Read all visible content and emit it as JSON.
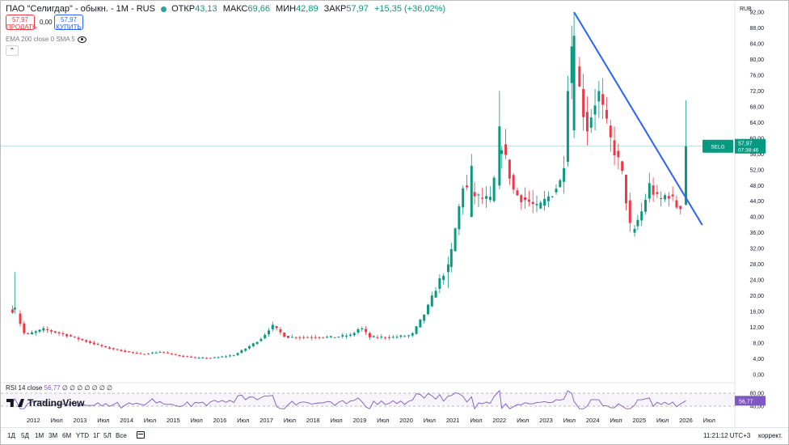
{
  "header": {
    "instrument": "ПАО \"Селигдар\" - обыкн. - 1М - RUS",
    "ohlc": [
      {
        "label": "ОТКР",
        "value": "43,13"
      },
      {
        "label": "МАКС",
        "value": "69,66"
      },
      {
        "label": "МИН",
        "value": "42,89"
      },
      {
        "label": "ЗАКР",
        "value": "57,97"
      }
    ],
    "change": "+15,35 (+36,02%)"
  },
  "trade": {
    "sell_price": "57,97",
    "sell_label": "ПРОДАТЬ",
    "spread": "0,00",
    "buy_price": "57,97",
    "buy_label": "КУПИТЬ"
  },
  "indicator_legend": "EMA 200 close 0 SMA 5",
  "collapse_icon": "chevron-up-icon",
  "currency": "RUB",
  "price_tag": {
    "symbol": "SELG",
    "price": "57,97",
    "countdown": "07:38:46"
  },
  "rsi": {
    "label": "RSI 14 close",
    "value": "56,77",
    "empty_values": "∅ ∅ ∅ ∅ ∅ ∅ ∅"
  },
  "logo": "TradingView",
  "timeframes": [
    "1Д",
    "5Д",
    "1М",
    "3М",
    "6М",
    "YTD",
    "1Г",
    "5Л",
    "Все"
  ],
  "clock": "11:21:12 UTC+3",
  "adjust_label": "коррект.",
  "colors": {
    "up": "#089981",
    "down": "#f23645",
    "trendline": "#2962ff",
    "rsi": "#7e57c2"
  },
  "chart_data": {
    "type": "candlestick",
    "interval": "1M",
    "ylim": [
      0,
      92
    ],
    "y_ticks": [
      "0,00",
      "4,00",
      "8,00",
      "12,00",
      "16,00",
      "20,00",
      "24,00",
      "28,00",
      "32,00",
      "36,00",
      "40,00",
      "44,00",
      "48,00",
      "52,00",
      "56,00",
      "60,00",
      "64,00",
      "68,00",
      "72,00",
      "76,00",
      "80,00",
      "84,00",
      "88,00",
      "92,00"
    ],
    "x_labels": [
      {
        "t": 2012.0,
        "label": "2012"
      },
      {
        "t": 2012.5,
        "label": "Июл"
      },
      {
        "t": 2013.0,
        "label": "2013"
      },
      {
        "t": 2013.5,
        "label": "Июл"
      },
      {
        "t": 2014.0,
        "label": "2014"
      },
      {
        "t": 2014.5,
        "label": "Июл"
      },
      {
        "t": 2015.0,
        "label": "2015"
      },
      {
        "t": 2015.5,
        "label": "Июл"
      },
      {
        "t": 2016.0,
        "label": "2016"
      },
      {
        "t": 2016.5,
        "label": "Июл"
      },
      {
        "t": 2017.0,
        "label": "2017"
      },
      {
        "t": 2017.5,
        "label": "Июл"
      },
      {
        "t": 2018.0,
        "label": "2018"
      },
      {
        "t": 2018.5,
        "label": "Июл"
      },
      {
        "t": 2019.0,
        "label": "2019"
      },
      {
        "t": 2019.5,
        "label": "Июл"
      },
      {
        "t": 2020.0,
        "label": "2020"
      },
      {
        "t": 2020.5,
        "label": "Июл"
      },
      {
        "t": 2021.0,
        "label": "2021"
      },
      {
        "t": 2021.5,
        "label": "Июл"
      },
      {
        "t": 2022.0,
        "label": "2022"
      },
      {
        "t": 2022.5,
        "label": "Июл"
      },
      {
        "t": 2023.0,
        "label": "2023"
      },
      {
        "t": 2023.5,
        "label": "Июл"
      },
      {
        "t": 2024.0,
        "label": "2024"
      },
      {
        "t": 2024.5,
        "label": "Июл"
      },
      {
        "t": 2025.0,
        "label": "2025"
      },
      {
        "t": 2025.5,
        "label": "Июл"
      },
      {
        "t": 2026.0,
        "label": "2026"
      },
      {
        "t": 2026.5,
        "label": "Июл"
      }
    ],
    "last_close": 57.97,
    "key_candles": [
      {
        "t": 2011.6,
        "o": 16.5,
        "h": 26.0,
        "l": 15.5,
        "c": 17.0
      },
      {
        "t": 2020.9,
        "o": 26.0,
        "h": 30.0,
        "l": 22.0,
        "c": 28.0
      },
      {
        "t": 2021.4,
        "o": 40.0,
        "h": 56.0,
        "l": 40.0,
        "c": 53.0
      },
      {
        "t": 2022.0,
        "o": 48.0,
        "h": 72.0,
        "l": 47.0,
        "c": 63.0
      },
      {
        "t": 2023.6,
        "o": 62.0,
        "h": 92.0,
        "l": 60.0,
        "c": 86.0
      },
      {
        "t": 2024.9,
        "o": 36.0,
        "h": 38.0,
        "l": 35.0,
        "c": 37.0
      },
      {
        "t": 2026.0,
        "o": 43.13,
        "h": 69.66,
        "l": 42.89,
        "c": 57.97
      }
    ],
    "trendline": {
      "from": {
        "t": 2023.6,
        "y": 92.0
      },
      "to": {
        "t": 2026.35,
        "y": 38.0
      }
    },
    "rsi": {
      "levels": [
        "80,00",
        "40,00"
      ],
      "current": 56.77
    }
  }
}
